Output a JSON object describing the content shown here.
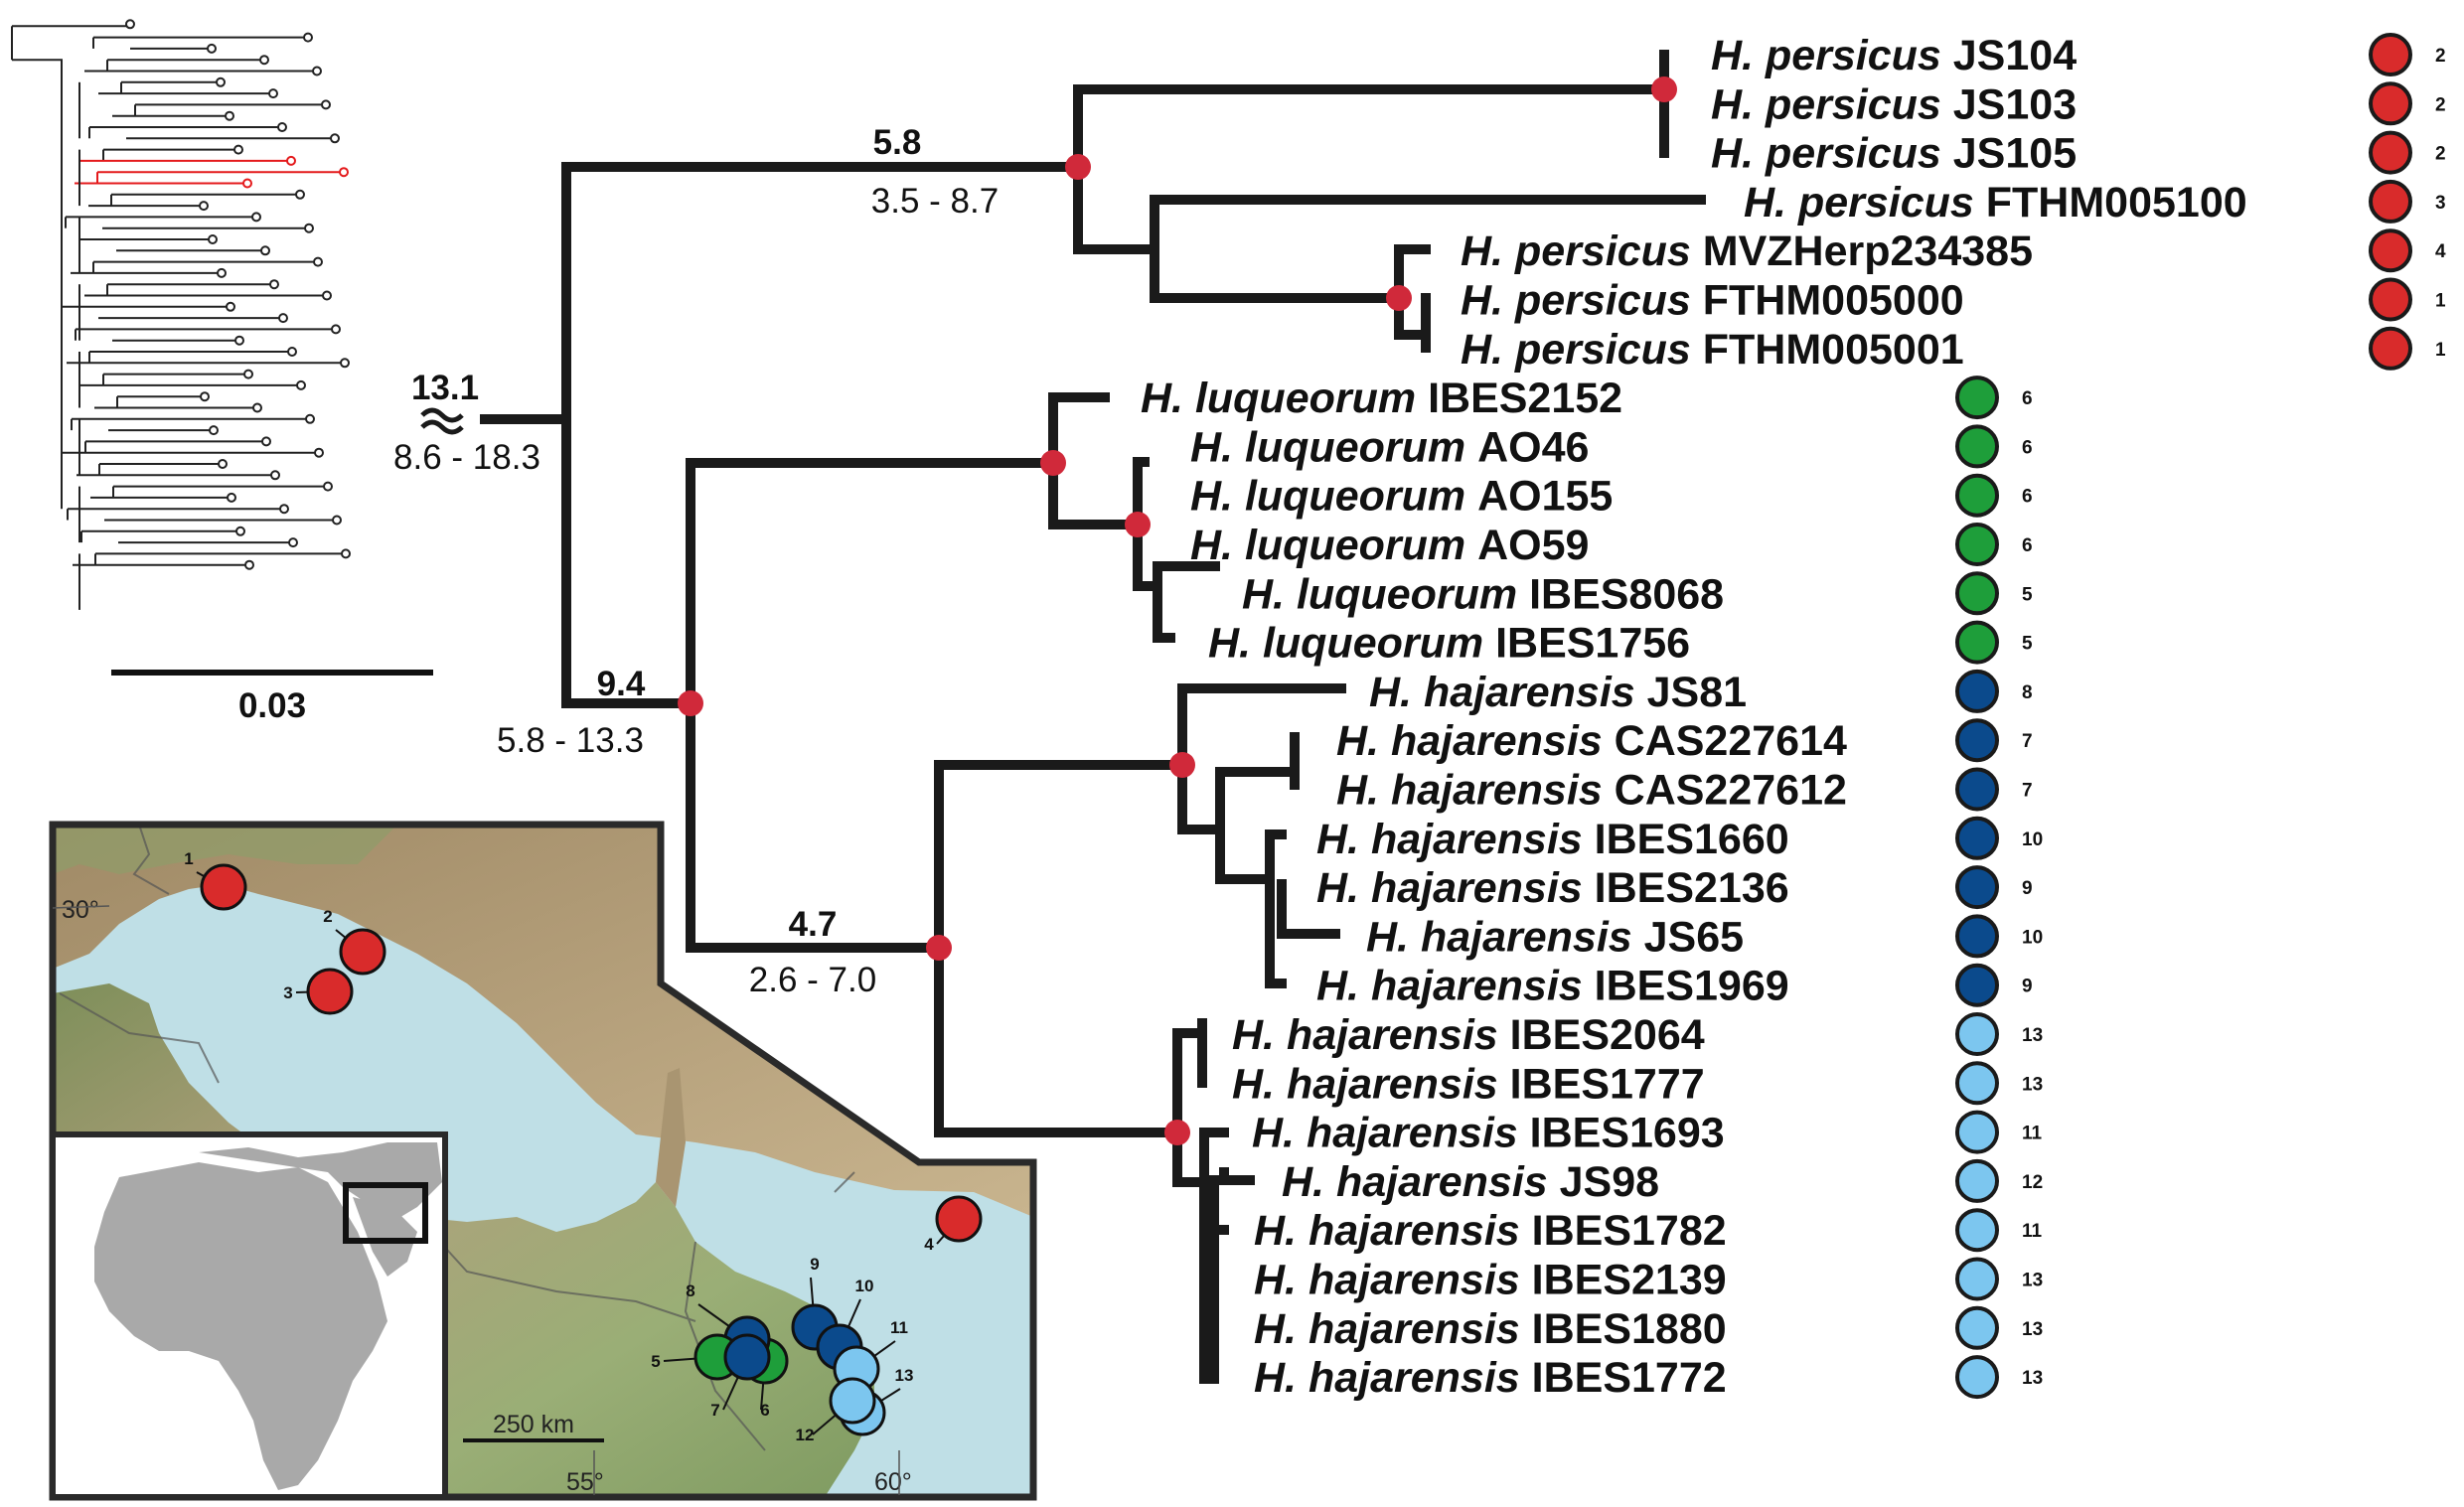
{
  "colors": {
    "node": "#d0293a",
    "persicus": "#d92b2b",
    "luqueorum": "#1e9e3a",
    "hajarensis_dark": "#0b4a8c",
    "hajarensis_light": "#7cc6ef",
    "highlight_clade": "#e41a1c",
    "sea": "#bfe0e6",
    "land_high": "#8a7355",
    "land_low": "#8fb074",
    "world_land": "#a7a7a7"
  },
  "icons": {
    "node_marker": "filled-circle",
    "locality_marker": "outlined-filled-circle",
    "tip_marker": "small-open-circle"
  },
  "node_ages": {
    "root": {
      "mean": "13.1",
      "hpd": "8.6 - 18.3"
    },
    "persicus": {
      "mean": "5.8",
      "hpd": "3.5 - 8.7"
    },
    "luqueorum_hajarensis": {
      "mean": "9.4",
      "hpd": "5.8 - 13.3"
    },
    "hajarensis": {
      "mean": "4.7",
      "hpd": "2.6 - 7.0"
    }
  },
  "taxa": [
    {
      "species": "H. persicus",
      "specimen": "JS104",
      "group": "persicus",
      "locality": "2"
    },
    {
      "species": "H. persicus",
      "specimen": "JS103",
      "group": "persicus",
      "locality": "2"
    },
    {
      "species": "H. persicus",
      "specimen": "JS105",
      "group": "persicus",
      "locality": "2"
    },
    {
      "species": "H. persicus",
      "specimen": "FTHM005100",
      "group": "persicus",
      "locality": "3"
    },
    {
      "species": "H. persicus",
      "specimen": "MVZHerp234385",
      "group": "persicus",
      "locality": "4"
    },
    {
      "species": "H. persicus",
      "specimen": "FTHM005000",
      "group": "persicus",
      "locality": "1"
    },
    {
      "species": "H. persicus",
      "specimen": "FTHM005001",
      "group": "persicus",
      "locality": "1"
    },
    {
      "species": "H. luqueorum",
      "specimen": "IBES2152",
      "group": "luqueorum",
      "locality": "6"
    },
    {
      "species": "H. luqueorum",
      "specimen": "AO46",
      "group": "luqueorum",
      "locality": "6"
    },
    {
      "species": "H. luqueorum",
      "specimen": "AO155",
      "group": "luqueorum",
      "locality": "6"
    },
    {
      "species": "H. luqueorum",
      "specimen": "AO59",
      "group": "luqueorum",
      "locality": "6"
    },
    {
      "species": "H. luqueorum",
      "specimen": "IBES8068",
      "group": "luqueorum",
      "locality": "5"
    },
    {
      "species": "H. luqueorum",
      "specimen": "IBES1756",
      "group": "luqueorum",
      "locality": "5"
    },
    {
      "species": "H. hajarensis",
      "specimen": "JS81",
      "group": "hajarensis_dark",
      "locality": "8"
    },
    {
      "species": "H. hajarensis",
      "specimen": "CAS227614",
      "group": "hajarensis_dark",
      "locality": "7"
    },
    {
      "species": "H. hajarensis",
      "specimen": "CAS227612",
      "group": "hajarensis_dark",
      "locality": "7"
    },
    {
      "species": "H. hajarensis",
      "specimen": "IBES1660",
      "group": "hajarensis_dark",
      "locality": "10"
    },
    {
      "species": "H. hajarensis",
      "specimen": "IBES2136",
      "group": "hajarensis_dark",
      "locality": "9"
    },
    {
      "species": "H. hajarensis",
      "specimen": "JS65",
      "group": "hajarensis_dark",
      "locality": "10"
    },
    {
      "species": "H. hajarensis",
      "specimen": "IBES1969",
      "group": "hajarensis_dark",
      "locality": "9"
    },
    {
      "species": "H. hajarensis",
      "specimen": "IBES2064",
      "group": "hajarensis_light",
      "locality": "13"
    },
    {
      "species": "H. hajarensis",
      "specimen": "IBES1777",
      "group": "hajarensis_light",
      "locality": "13"
    },
    {
      "species": "H. hajarensis",
      "specimen": "IBES1693",
      "group": "hajarensis_light",
      "locality": "11"
    },
    {
      "species": "H. hajarensis",
      "specimen": "JS98",
      "group": "hajarensis_light",
      "locality": "12"
    },
    {
      "species": "H. hajarensis",
      "specimen": "IBES1782",
      "group": "hajarensis_light",
      "locality": "11"
    },
    {
      "species": "H. hajarensis",
      "specimen": "IBES2139",
      "group": "hajarensis_light",
      "locality": "13"
    },
    {
      "species": "H. hajarensis",
      "specimen": "IBES1880",
      "group": "hajarensis_light",
      "locality": "13"
    },
    {
      "species": "H. hajarensis",
      "specimen": "IBES1772",
      "group": "hajarensis_light",
      "locality": "13"
    }
  ],
  "inset_tree": {
    "scale_label": "0.03"
  },
  "map": {
    "lat_label": "30°",
    "lon_labels": [
      "55°",
      "60°"
    ],
    "scale_label": "250 km",
    "points": [
      {
        "label": "1",
        "group": "persicus"
      },
      {
        "label": "2",
        "group": "persicus"
      },
      {
        "label": "3",
        "group": "persicus"
      },
      {
        "label": "4",
        "group": "persicus"
      },
      {
        "label": "5",
        "group": "luqueorum"
      },
      {
        "label": "6",
        "group": "luqueorum"
      },
      {
        "label": "7",
        "group": "hajarensis_dark"
      },
      {
        "label": "8",
        "group": "hajarensis_dark"
      },
      {
        "label": "9",
        "group": "hajarensis_dark"
      },
      {
        "label": "10",
        "group": "hajarensis_dark"
      },
      {
        "label": "11",
        "group": "hajarensis_light"
      },
      {
        "label": "12",
        "group": "hajarensis_light"
      },
      {
        "label": "13",
        "group": "hajarensis_light"
      }
    ]
  }
}
